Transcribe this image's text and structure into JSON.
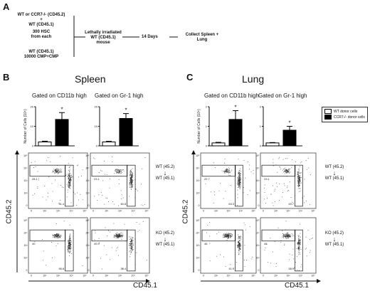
{
  "panelA": {
    "letter": "A",
    "donor_lines": [
      "WT or CCR7-/- (CD45.2)",
      "+",
      "WT (CD45.1)",
      "300 HSC",
      "from each"
    ],
    "wt_lines": [
      "WT (CD45.1)",
      "10000 CMP+CMP"
    ],
    "recipient_lines": [
      "Lethally irradiated",
      "WT (CD45.1)",
      "mouse"
    ],
    "days": "14 Days",
    "collect_lines": [
      "Collect Spleen +",
      "Lung"
    ]
  },
  "panelB": {
    "letter": "B",
    "title": "Spleen",
    "gate1": "Gated on CD11b high",
    "gate2": "Gated on Gr-1 high",
    "row1_label": [
      "WT (45.2)",
      "↓",
      "WT (45.1)"
    ],
    "row2_label": [
      "KO (45.2)",
      "↓",
      "WT (45.1)"
    ],
    "yaxis": "CD45.2",
    "xaxis": "CD45.1",
    "plots": [
      {
        "upper": "28.1",
        "lower": "51.4"
      },
      {
        "upper": "23.1",
        "lower": "60.8"
      },
      {
        "upper": "40",
        "lower": "55.8"
      },
      {
        "upper": "49.9",
        "lower": "33.4"
      }
    ]
  },
  "panelC": {
    "letter": "C",
    "title": "Lung",
    "gate1": "Gated on CD11b high",
    "gate2": "Gated on Gr-1 high",
    "row1_label": [
      "WT (45.2)",
      "↓",
      "WT (45.1)"
    ],
    "row2_label": [
      "KO (45.2)",
      "↓",
      "WT (45.1)"
    ],
    "yaxis": "CD45.2",
    "xaxis": "CD45.1",
    "plots": [
      {
        "upper": "22.7",
        "lower": "63.3"
      },
      {
        "upper": "23.1",
        "lower": "49.7"
      },
      {
        "upper": "46",
        "lower": "41.9"
      },
      {
        "upper": "45",
        "lower": "38.9"
      }
    ]
  },
  "legend": {
    "wt": "WT donor cells",
    "ko": "CCR7-/- donor cells",
    "wt_color": "#ffffff",
    "ko_color": "#000000"
  },
  "chart_data": [
    {
      "type": "bar",
      "title": "Gated on CD11b high",
      "ylabel": "Number of Cells (10⁵)",
      "yticks": [
        "0",
        "10",
        "20"
      ],
      "ylim": [
        0,
        20
      ],
      "categories": [
        "WT donor cells",
        "CCR7-/- donor cells"
      ],
      "values": [
        2,
        13.5
      ],
      "errors": [
        0.4,
        3.5
      ],
      "significance": "*"
    },
    {
      "type": "bar",
      "title": "Gated on Gr-1 high",
      "ylabel": "",
      "yticks": [
        "0",
        "10",
        "20"
      ],
      "ylim": [
        0,
        20
      ],
      "categories": [
        "WT donor cells",
        "CCR7-/- donor cells"
      ],
      "values": [
        2,
        14
      ],
      "errors": [
        0.3,
        2.5
      ],
      "significance": "*"
    },
    {
      "type": "bar",
      "title": "Gated on CD11b high",
      "ylabel": "Number of Cells (10⁵)",
      "yticks": [
        "0",
        "1",
        "2"
      ],
      "ylim": [
        0,
        2
      ],
      "categories": [
        "WT donor cells",
        "CCR7-/- donor cells"
      ],
      "values": [
        0.15,
        1.35
      ],
      "errors": [
        0.03,
        0.45
      ],
      "significance": "*"
    },
    {
      "type": "bar",
      "title": "Gated on Gr-1 high",
      "ylabel": "",
      "yticks": [
        "0",
        "1",
        "2"
      ],
      "ylim": [
        0,
        2
      ],
      "categories": [
        "WT donor cells",
        "CCR7-/- donor cells"
      ],
      "values": [
        0.15,
        0.8
      ],
      "errors": [
        0.02,
        0.2
      ],
      "significance": "*"
    }
  ]
}
